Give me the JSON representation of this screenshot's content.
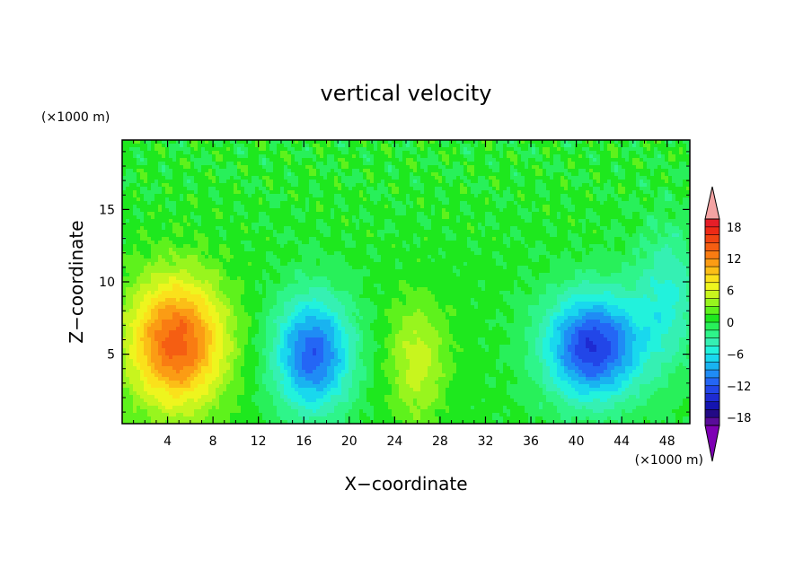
{
  "chart_data": {
    "type": "heatmap",
    "title": "vertical velocity",
    "xlabel": "X−coordinate",
    "ylabel": "Z−coordinate",
    "x_unit": "(×1000 m)",
    "y_unit": "(×1000 m)",
    "xlim": [
      0,
      50
    ],
    "ylim": [
      0.2,
      19.8
    ],
    "x_ticks": [
      4,
      8,
      12,
      16,
      20,
      24,
      28,
      32,
      36,
      40,
      44,
      48
    ],
    "y_ticks": [
      5,
      10,
      15
    ],
    "x_tick_labels": [
      "4",
      "8",
      "12",
      "16",
      "20",
      "24",
      "28",
      "32",
      "36",
      "40",
      "44",
      "48"
    ],
    "y_tick_labels": [
      "5",
      "10",
      "15"
    ],
    "colorbar": {
      "levels": [
        -21,
        -19.5,
        -18,
        -16.5,
        -15,
        -13.5,
        -12,
        -10.5,
        -9,
        -7.5,
        -6,
        -4.5,
        -3,
        -1.5,
        0,
        1.5,
        3,
        4.5,
        6,
        7.5,
        9,
        10.5,
        12,
        13.5,
        15,
        16.5,
        18,
        19.5,
        21
      ],
      "tick_values": [
        -18,
        -12,
        -6,
        0,
        6,
        12,
        18
      ],
      "tick_labels": [
        "−18",
        "−12",
        "−6",
        "0",
        "6",
        "12",
        "18"
      ],
      "colors": [
        "#7e00b4",
        "#5a0c9a",
        "#230a85",
        "#1414b0",
        "#1e2bd2",
        "#2246e8",
        "#2466f5",
        "#1f8cf5",
        "#19b3f0",
        "#19d8ee",
        "#22f2dc",
        "#35f0b3",
        "#2ef58a",
        "#28f05a",
        "#1ee81e",
        "#5ef21c",
        "#98f51e",
        "#c8f51e",
        "#eef51e",
        "#fae11b",
        "#fbbe17",
        "#fb9c14",
        "#f97c12",
        "#f55e12",
        "#f14412",
        "#ee2a16",
        "#e51e28",
        "#f4a3a3"
      ],
      "extend": "both"
    },
    "features": [
      {
        "x": 4.8,
        "z": 5.8,
        "value": 14,
        "sx": 3.0,
        "sz": 3.2
      },
      {
        "x": 16.8,
        "z": 5.0,
        "value": -12,
        "sx": 2.4,
        "sz": 2.8
      },
      {
        "x": 26.0,
        "z": 4.5,
        "value": 5,
        "sx": 1.8,
        "sz": 3.0
      },
      {
        "x": 41.5,
        "z": 5.5,
        "value": -14,
        "sx": 3.0,
        "sz": 2.6
      },
      {
        "x": 48.0,
        "z": 9.0,
        "value": -5,
        "sx": 2.0,
        "sz": 3.5
      }
    ]
  }
}
